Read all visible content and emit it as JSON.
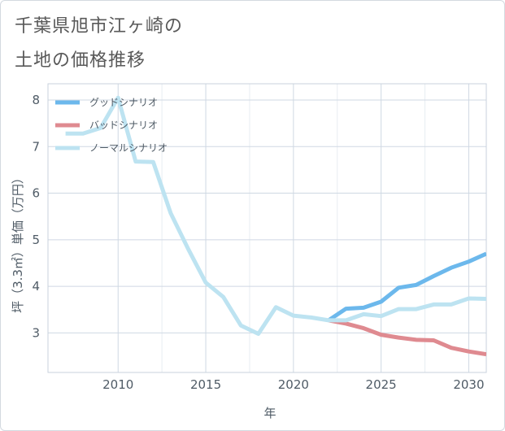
{
  "page": {
    "title_line1": "千葉県旭市江ヶ崎の",
    "title_line2": "土地の価格推移"
  },
  "colors": {
    "good": "#6cb8ec",
    "bad": "#df8a90",
    "normal": "#bde3f1",
    "grid": "#cfd8e3",
    "text": "#4f5b66"
  },
  "chart_data": {
    "type": "line",
    "xlabel": "年",
    "ylabel": "坪（3.3㎡）単価（万円）",
    "xlim": [
      2006,
      2031
    ],
    "ylim": [
      2.15,
      8.35
    ],
    "x_ticks": [
      2010,
      2015,
      2020,
      2025,
      2030
    ],
    "y_ticks": [
      3,
      4,
      5,
      6,
      7,
      8
    ],
    "grid": true,
    "legend_position": "top-left",
    "series": [
      {
        "name": "グッドシナリオ",
        "color_key": "good",
        "points": [
          [
            2022,
            3.27
          ],
          [
            2023,
            3.52
          ],
          [
            2024,
            3.54
          ],
          [
            2025,
            3.67
          ],
          [
            2026,
            3.97
          ],
          [
            2027,
            4.03
          ],
          [
            2028,
            4.22
          ],
          [
            2029,
            4.4
          ],
          [
            2030,
            4.53
          ],
          [
            2031,
            4.7
          ]
        ]
      },
      {
        "name": "バッドシナリオ",
        "color_key": "bad",
        "points": [
          [
            2022,
            3.27
          ],
          [
            2023,
            3.2
          ],
          [
            2024,
            3.1
          ],
          [
            2025,
            2.96
          ],
          [
            2026,
            2.9
          ],
          [
            2027,
            2.85
          ],
          [
            2028,
            2.84
          ],
          [
            2029,
            2.68
          ],
          [
            2030,
            2.6
          ],
          [
            2031,
            2.54
          ]
        ]
      },
      {
        "name": "ノーマルシナリオ",
        "color_key": "normal",
        "points": [
          [
            2007,
            7.28
          ],
          [
            2008,
            7.28
          ],
          [
            2009,
            7.4
          ],
          [
            2010,
            8.05
          ],
          [
            2011,
            6.68
          ],
          [
            2012,
            6.67
          ],
          [
            2013,
            5.57
          ],
          [
            2014,
            4.8
          ],
          [
            2015,
            4.08
          ],
          [
            2016,
            3.77
          ],
          [
            2017,
            3.16
          ],
          [
            2018,
            2.98
          ],
          [
            2019,
            3.55
          ],
          [
            2020,
            3.37
          ],
          [
            2021,
            3.33
          ],
          [
            2022,
            3.27
          ],
          [
            2023,
            3.27
          ],
          [
            2024,
            3.4
          ],
          [
            2025,
            3.36
          ],
          [
            2026,
            3.51
          ],
          [
            2027,
            3.51
          ],
          [
            2028,
            3.61
          ],
          [
            2029,
            3.61
          ],
          [
            2030,
            3.74
          ],
          [
            2031,
            3.73
          ]
        ]
      }
    ]
  }
}
